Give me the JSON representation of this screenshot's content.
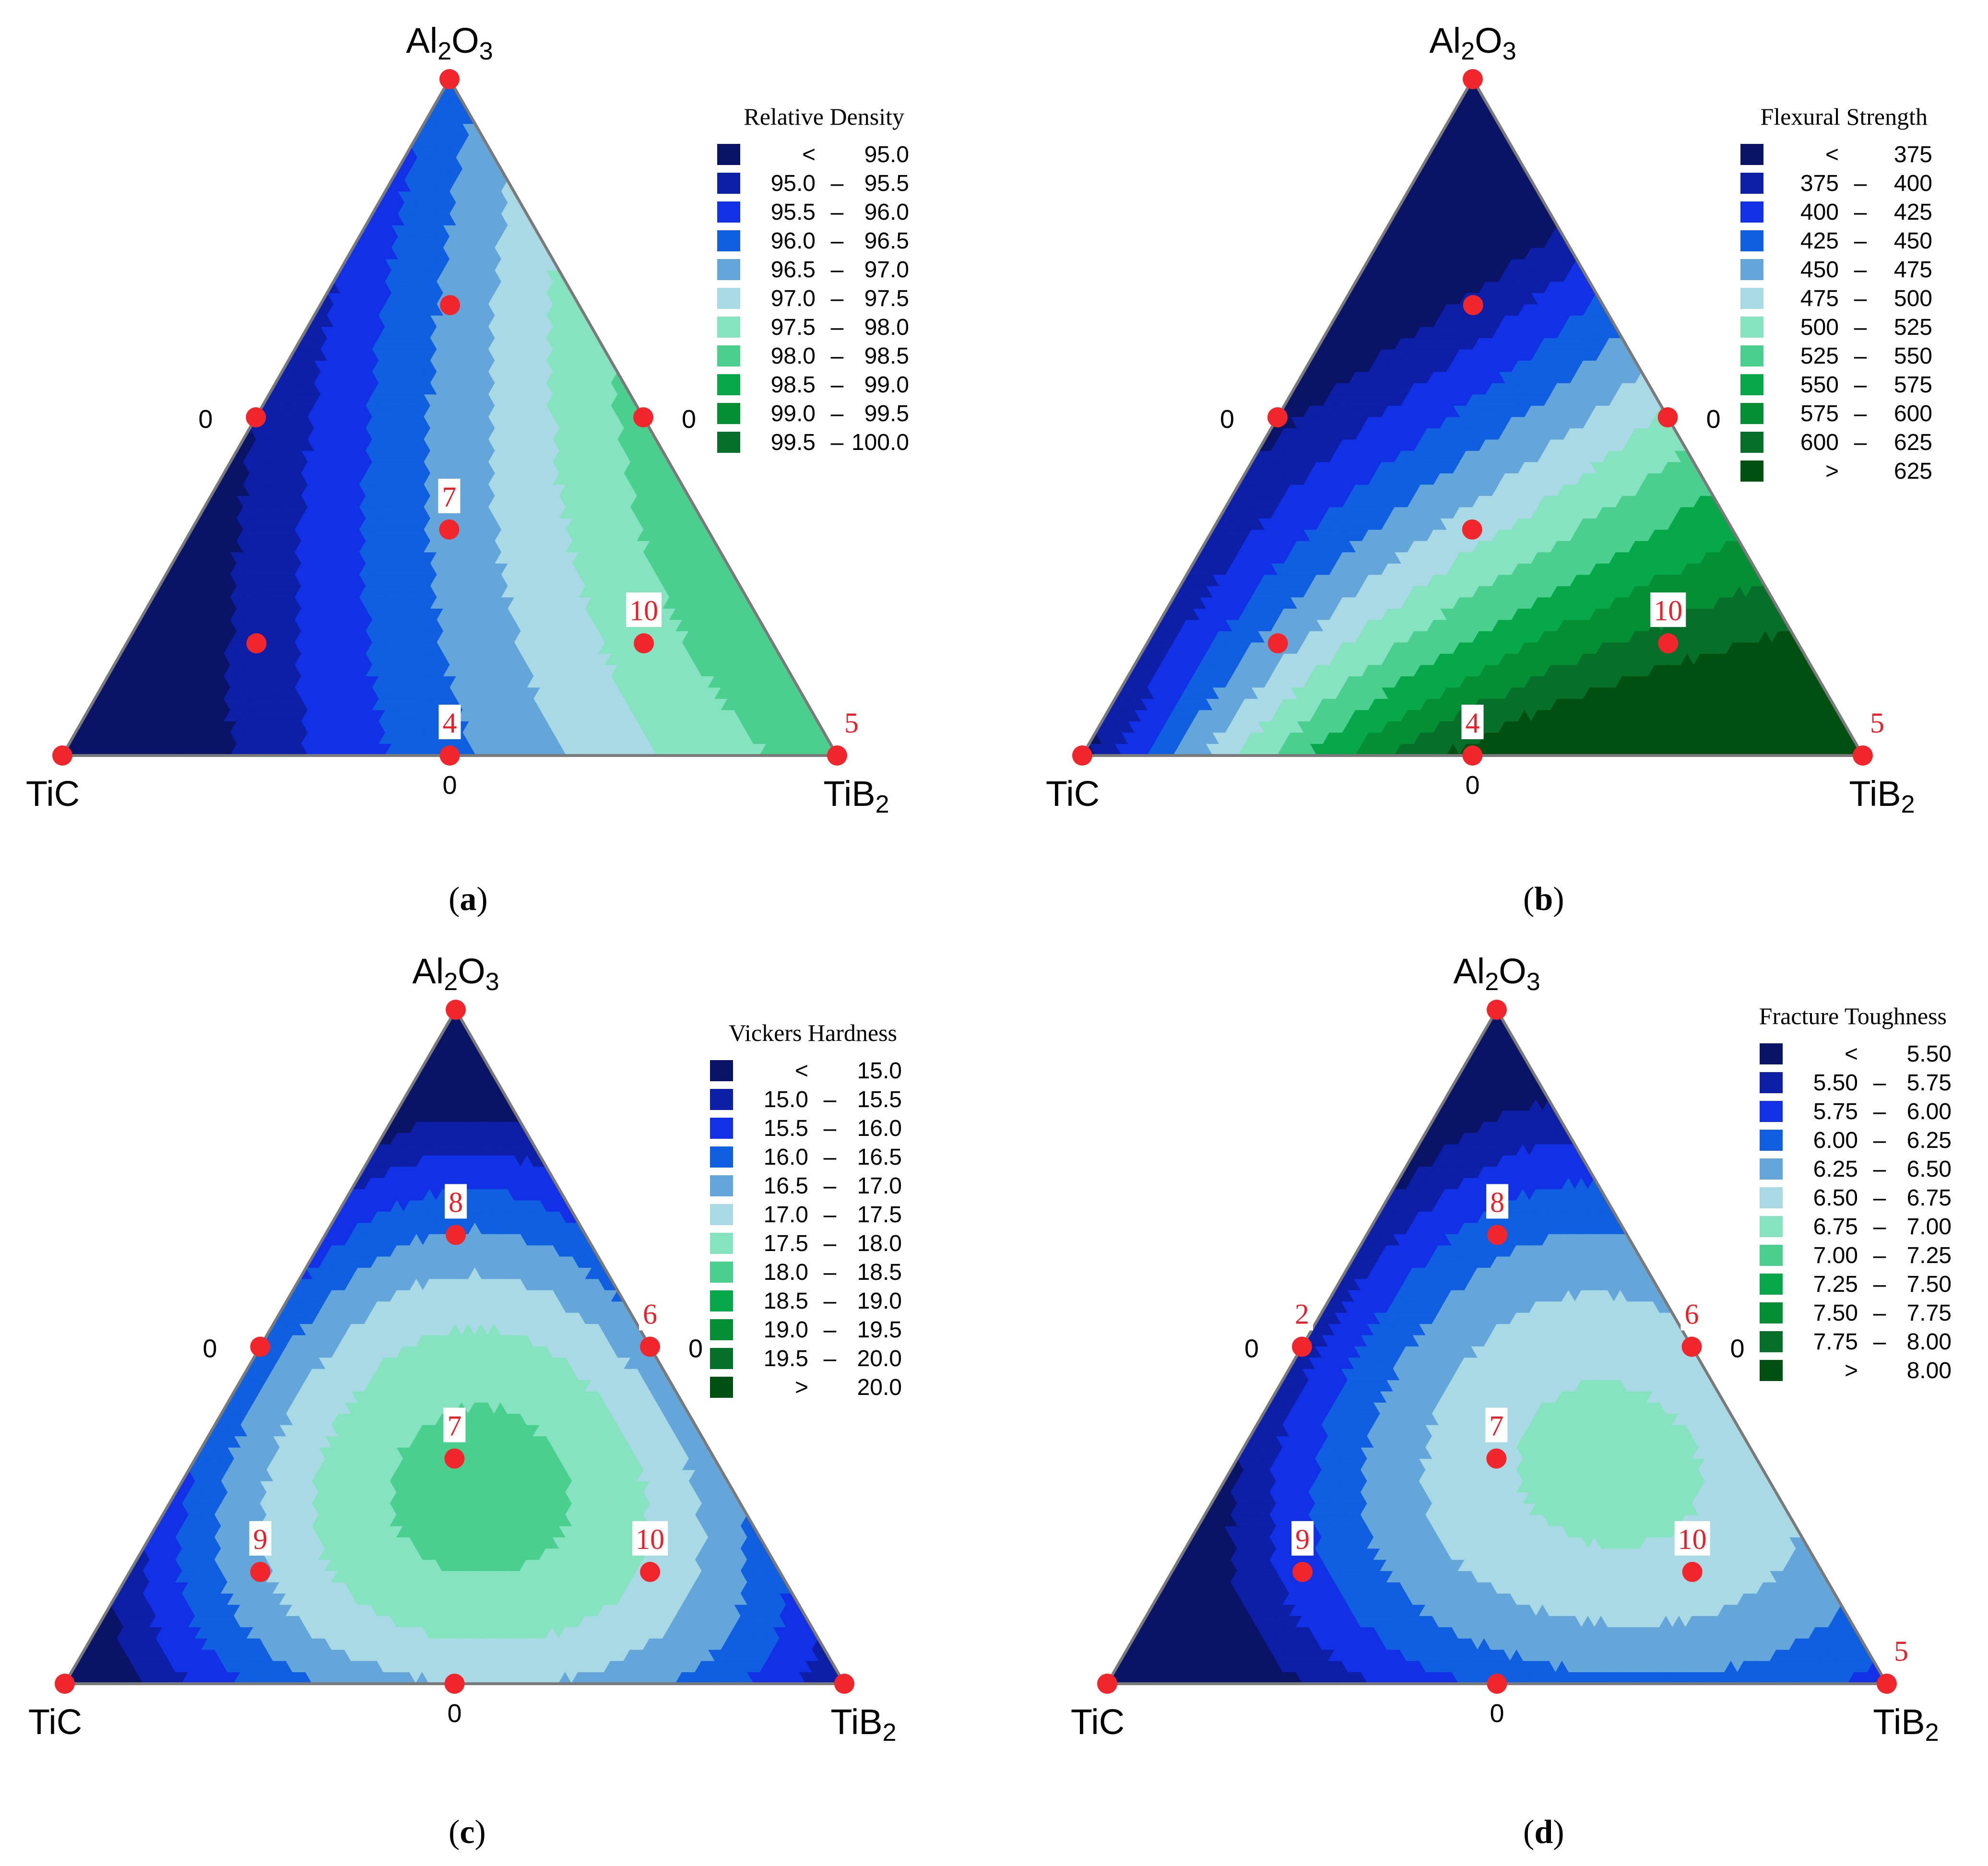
{
  "colors": {
    "levels": [
      "#0a1466",
      "#0c1fa6",
      "#1230e6",
      "#0f5fe0",
      "#64a6da",
      "#a8d9e4",
      "#86e3bf",
      "#4bcf8e",
      "#06a84a",
      "#058f34",
      "#06702a",
      "#005012"
    ],
    "point": "#f0262c",
    "point_label": "#e8202a",
    "edge": "#7a7a7a"
  },
  "chart_data": [
    {
      "type": "ternary-contour",
      "caption_letter": "a",
      "caption_open": "(",
      "caption_close": ")",
      "vertices": {
        "top": "Al2O3",
        "left": "TiC",
        "right": "TiB2"
      },
      "edge_zero_labels": [
        "0",
        "0",
        "0"
      ],
      "legend": {
        "title": "Relative Density",
        "entries": [
          {
            "lo": "<",
            "dash": "",
            "hi": "95.0"
          },
          {
            "lo": "95.0",
            "dash": "–",
            "hi": "95.5"
          },
          {
            "lo": "95.5",
            "dash": "–",
            "hi": "96.0"
          },
          {
            "lo": "96.0",
            "dash": "–",
            "hi": "96.5"
          },
          {
            "lo": "96.5",
            "dash": "–",
            "hi": "97.0"
          },
          {
            "lo": "97.0",
            "dash": "–",
            "hi": "97.5"
          },
          {
            "lo": "97.5",
            "dash": "–",
            "hi": "98.0"
          },
          {
            "lo": "98.0",
            "dash": "–",
            "hi": "98.5"
          },
          {
            "lo": "98.5",
            "dash": "–",
            "hi": "99.0"
          },
          {
            "lo": "99.0",
            "dash": "–",
            "hi": "99.5"
          },
          {
            "lo": "99.5",
            "dash": "–",
            "hi": "100.0"
          }
        ]
      },
      "points": [
        {
          "a": 1,
          "b": 0,
          "c": 0,
          "label": ""
        },
        {
          "a": 0.667,
          "b": 0.167,
          "c": 0.167,
          "label": ""
        },
        {
          "a": 0.5,
          "b": 0.5,
          "c": 0,
          "label": ""
        },
        {
          "a": 0.5,
          "b": 0,
          "c": 0.5,
          "label": ""
        },
        {
          "a": 0.333,
          "b": 0.333,
          "c": 0.333,
          "label": "7"
        },
        {
          "a": 0.167,
          "b": 0.667,
          "c": 0.167,
          "label": ""
        },
        {
          "a": 0.167,
          "b": 0.167,
          "c": 0.667,
          "label": "10"
        },
        {
          "a": 0,
          "b": 1,
          "c": 0,
          "label": ""
        },
        {
          "a": 0,
          "b": 0.5,
          "c": 0.5,
          "label": "4"
        },
        {
          "a": 0,
          "b": 0,
          "c": 1,
          "label": "5"
        }
      ]
    },
    {
      "type": "ternary-contour",
      "caption_letter": "b",
      "caption_open": "(",
      "caption_close": ")",
      "vertices": {
        "top": "Al2O3",
        "left": "TiC",
        "right": "TiB2"
      },
      "edge_zero_labels": [
        "0",
        "0",
        "0"
      ],
      "legend": {
        "title": "Flexural Strength",
        "entries": [
          {
            "lo": "<",
            "dash": "",
            "hi": "375"
          },
          {
            "lo": "375",
            "dash": "–",
            "hi": "400"
          },
          {
            "lo": "400",
            "dash": "–",
            "hi": "425"
          },
          {
            "lo": "425",
            "dash": "–",
            "hi": "450"
          },
          {
            "lo": "450",
            "dash": "–",
            "hi": "475"
          },
          {
            "lo": "475",
            "dash": "–",
            "hi": "500"
          },
          {
            "lo": "500",
            "dash": "–",
            "hi": "525"
          },
          {
            "lo": "525",
            "dash": "–",
            "hi": "550"
          },
          {
            "lo": "550",
            "dash": "–",
            "hi": "575"
          },
          {
            "lo": "575",
            "dash": "–",
            "hi": "600"
          },
          {
            "lo": "600",
            "dash": "–",
            "hi": "625"
          },
          {
            "lo": ">",
            "dash": "",
            "hi": "625"
          }
        ]
      },
      "points": [
        {
          "a": 1,
          "b": 0,
          "c": 0,
          "label": ""
        },
        {
          "a": 0.667,
          "b": 0.167,
          "c": 0.167,
          "label": ""
        },
        {
          "a": 0.5,
          "b": 0.5,
          "c": 0,
          "label": ""
        },
        {
          "a": 0.5,
          "b": 0,
          "c": 0.5,
          "label": ""
        },
        {
          "a": 0.333,
          "b": 0.333,
          "c": 0.333,
          "label": ""
        },
        {
          "a": 0.167,
          "b": 0.667,
          "c": 0.167,
          "label": ""
        },
        {
          "a": 0.167,
          "b": 0.167,
          "c": 0.667,
          "label": "10"
        },
        {
          "a": 0,
          "b": 1,
          "c": 0,
          "label": ""
        },
        {
          "a": 0,
          "b": 0.5,
          "c": 0.5,
          "label": "4"
        },
        {
          "a": 0,
          "b": 0,
          "c": 1,
          "label": "5"
        }
      ]
    },
    {
      "type": "ternary-contour",
      "caption_letter": "c",
      "caption_open": "(",
      "caption_close": ")",
      "vertices": {
        "top": "Al2O3",
        "left": "TiC",
        "right": "TiB2"
      },
      "edge_zero_labels": [
        "0",
        "0",
        "0"
      ],
      "legend": {
        "title": "Vickers Hardness",
        "entries": [
          {
            "lo": "<",
            "dash": "",
            "hi": "15.0"
          },
          {
            "lo": "15.0",
            "dash": "–",
            "hi": "15.5"
          },
          {
            "lo": "15.5",
            "dash": "–",
            "hi": "16.0"
          },
          {
            "lo": "16.0",
            "dash": "–",
            "hi": "16.5"
          },
          {
            "lo": "16.5",
            "dash": "–",
            "hi": "17.0"
          },
          {
            "lo": "17.0",
            "dash": "–",
            "hi": "17.5"
          },
          {
            "lo": "17.5",
            "dash": "–",
            "hi": "18.0"
          },
          {
            "lo": "18.0",
            "dash": "–",
            "hi": "18.5"
          },
          {
            "lo": "18.5",
            "dash": "–",
            "hi": "19.0"
          },
          {
            "lo": "19.0",
            "dash": "–",
            "hi": "19.5"
          },
          {
            "lo": "19.5",
            "dash": "–",
            "hi": "20.0"
          },
          {
            "lo": ">",
            "dash": "",
            "hi": "20.0"
          }
        ]
      },
      "points": [
        {
          "a": 1,
          "b": 0,
          "c": 0,
          "label": ""
        },
        {
          "a": 0.667,
          "b": 0.167,
          "c": 0.167,
          "label": "8"
        },
        {
          "a": 0.5,
          "b": 0.5,
          "c": 0,
          "label": ""
        },
        {
          "a": 0.5,
          "b": 0,
          "c": 0.5,
          "label": "6"
        },
        {
          "a": 0.333,
          "b": 0.333,
          "c": 0.333,
          "label": "7"
        },
        {
          "a": 0.167,
          "b": 0.667,
          "c": 0.167,
          "label": "9"
        },
        {
          "a": 0.167,
          "b": 0.167,
          "c": 0.667,
          "label": "10"
        },
        {
          "a": 0,
          "b": 1,
          "c": 0,
          "label": ""
        },
        {
          "a": 0,
          "b": 0.5,
          "c": 0.5,
          "label": ""
        },
        {
          "a": 0,
          "b": 0,
          "c": 1,
          "label": ""
        }
      ]
    },
    {
      "type": "ternary-contour",
      "caption_letter": "d",
      "caption_open": "(",
      "caption_close": ")",
      "vertices": {
        "top": "Al2O3",
        "left": "TiC",
        "right": "TiB2"
      },
      "edge_zero_labels": [
        "0",
        "0",
        "0"
      ],
      "legend": {
        "title": "Fracture Toughness",
        "entries": [
          {
            "lo": "<",
            "dash": "",
            "hi": "5.50"
          },
          {
            "lo": "5.50",
            "dash": "–",
            "hi": "5.75"
          },
          {
            "lo": "5.75",
            "dash": "–",
            "hi": "6.00"
          },
          {
            "lo": "6.00",
            "dash": "–",
            "hi": "6.25"
          },
          {
            "lo": "6.25",
            "dash": "–",
            "hi": "6.50"
          },
          {
            "lo": "6.50",
            "dash": "–",
            "hi": "6.75"
          },
          {
            "lo": "6.75",
            "dash": "–",
            "hi": "7.00"
          },
          {
            "lo": "7.00",
            "dash": "–",
            "hi": "7.25"
          },
          {
            "lo": "7.25",
            "dash": "–",
            "hi": "7.50"
          },
          {
            "lo": "7.50",
            "dash": "–",
            "hi": "7.75"
          },
          {
            "lo": "7.75",
            "dash": "–",
            "hi": "8.00"
          },
          {
            "lo": ">",
            "dash": "",
            "hi": "8.00"
          }
        ]
      },
      "points": [
        {
          "a": 1,
          "b": 0,
          "c": 0,
          "label": ""
        },
        {
          "a": 0.667,
          "b": 0.167,
          "c": 0.167,
          "label": "8"
        },
        {
          "a": 0.5,
          "b": 0.5,
          "c": 0,
          "label": "2"
        },
        {
          "a": 0.5,
          "b": 0,
          "c": 0.5,
          "label": "6"
        },
        {
          "a": 0.333,
          "b": 0.333,
          "c": 0.333,
          "label": "7"
        },
        {
          "a": 0.167,
          "b": 0.667,
          "c": 0.167,
          "label": "9"
        },
        {
          "a": 0.167,
          "b": 0.167,
          "c": 0.667,
          "label": "10"
        },
        {
          "a": 0,
          "b": 1,
          "c": 0,
          "label": ""
        },
        {
          "a": 0,
          "b": 0.5,
          "c": 0.5,
          "label": ""
        },
        {
          "a": 0,
          "b": 0,
          "c": 1,
          "label": "5"
        }
      ]
    }
  ]
}
